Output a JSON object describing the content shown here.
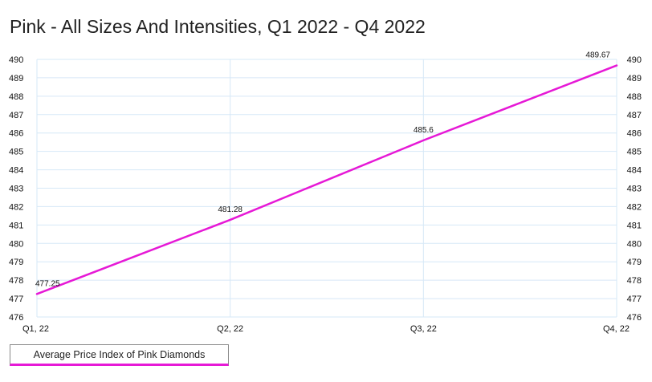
{
  "chart_data": {
    "type": "line",
    "title": "Pink - All Sizes And Intensities, Q1 2022 - Q4 2022",
    "categories": [
      "Q1, 22",
      "Q2, 22",
      "Q3, 22",
      "Q4, 22"
    ],
    "series": [
      {
        "name": "Average Price Index of Pink Diamonds",
        "values": [
          477.25,
          481.28,
          485.6,
          489.67
        ],
        "data_labels": [
          "477.25",
          "481.28",
          "485.6",
          "489.67"
        ],
        "color": "#e619d6"
      }
    ],
    "ylim": [
      476,
      490
    ],
    "yticks": [
      "476",
      "477",
      "478",
      "479",
      "480",
      "481",
      "482",
      "483",
      "484",
      "485",
      "486",
      "487",
      "488",
      "489",
      "490"
    ],
    "y_axis_sides": "both",
    "grid": true,
    "grid_color": "#d6e8f7",
    "legend_position": "bottom-left"
  }
}
